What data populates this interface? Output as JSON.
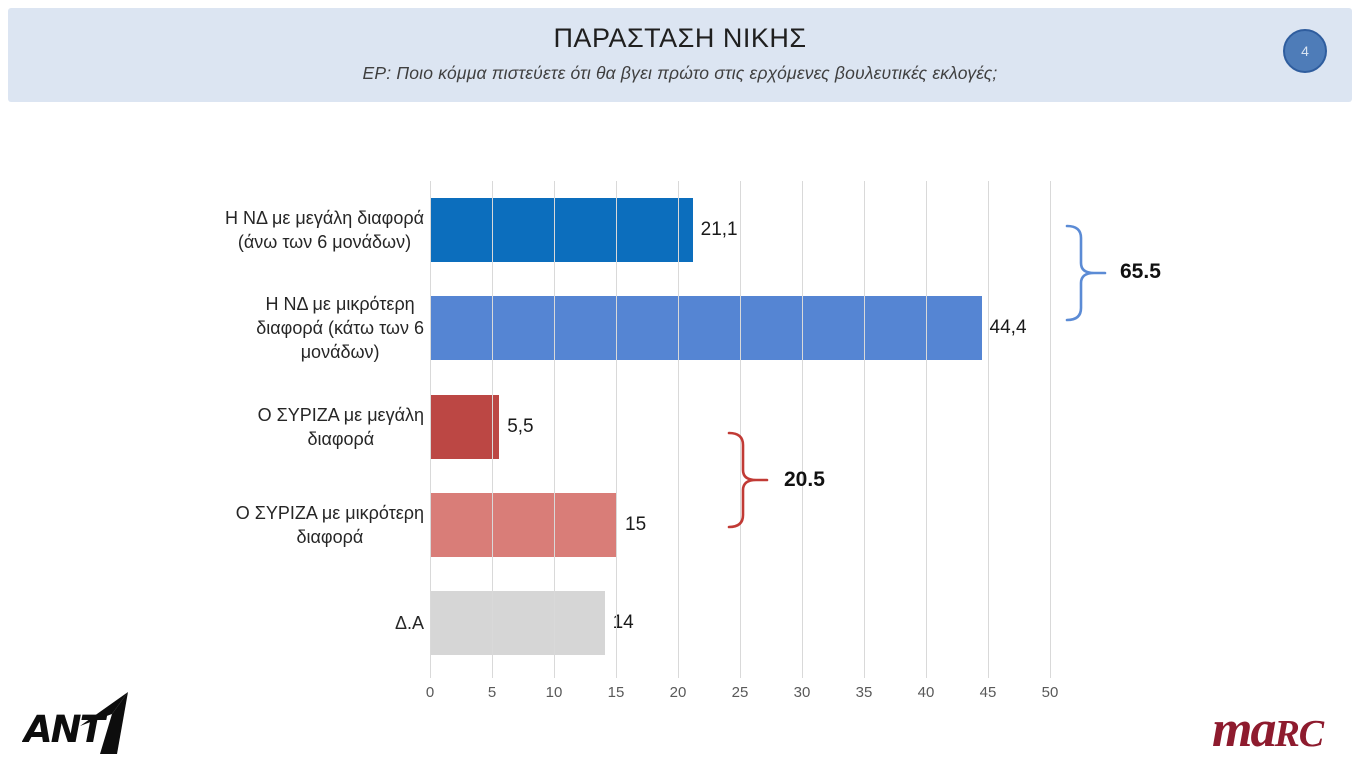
{
  "header": {
    "title": "ΠΑΡΑΣΤΑΣΗ ΝΙΚΗΣ",
    "question": "ΕΡ: Ποιο κόμμα πιστεύετε ότι θα βγει πρώτο στις ερχόμενες βουλευτικές εκλογές;",
    "page_number": "4"
  },
  "chart_data": {
    "type": "bar",
    "orientation": "horizontal",
    "title": "ΠΑΡΑΣΤΑΣΗ ΝΙΚΗΣ",
    "categories": [
      "Η ΝΔ με μεγάλη διαφορά\n(άνω των 6 μονάδων)",
      "Η ΝΔ με μικρότερη\nδιαφορά (κάτω των 6\nμονάδων)",
      "Ο ΣΥΡΙΖΑ με μεγάλη\nδιαφορά",
      "Ο ΣΥΡΙΖΑ με μικρότερη\nδιαφορά",
      "Δ.Α"
    ],
    "values": [
      21.1,
      44.4,
      5.5,
      15,
      14
    ],
    "value_labels": [
      "21,1",
      "44,4",
      "5,5",
      "15",
      "14"
    ],
    "bar_colors": [
      "#0c6ebd",
      "#5585d3",
      "#bc4744",
      "#d97d78",
      "#d6d6d6"
    ],
    "xlim": [
      0,
      50
    ],
    "x_ticks": [
      0,
      5,
      10,
      15,
      20,
      25,
      30,
      35,
      40,
      45,
      50
    ],
    "xlabel": "",
    "ylabel": "",
    "grid": true,
    "legend": false,
    "annotations": [
      {
        "text": "65.5",
        "brace_color": "#5b8bd5",
        "spans_bars": [
          0,
          1
        ]
      },
      {
        "text": "20.5",
        "brace_color": "#c13a35",
        "spans_bars": [
          2,
          3
        ]
      }
    ]
  },
  "footer": {
    "ant1_text": "ANT",
    "ant1_one": "1",
    "marc_part1": "ma",
    "marc_part2": "RC"
  },
  "colors": {
    "header_bg": "#dce5f2",
    "page_circle_fill": "#4e7cb8",
    "page_circle_border": "#2f5d9e",
    "grid_line": "#d9d9d9",
    "marc_red": "#8e1b2e",
    "ant1_black": "#0d0d0d"
  }
}
